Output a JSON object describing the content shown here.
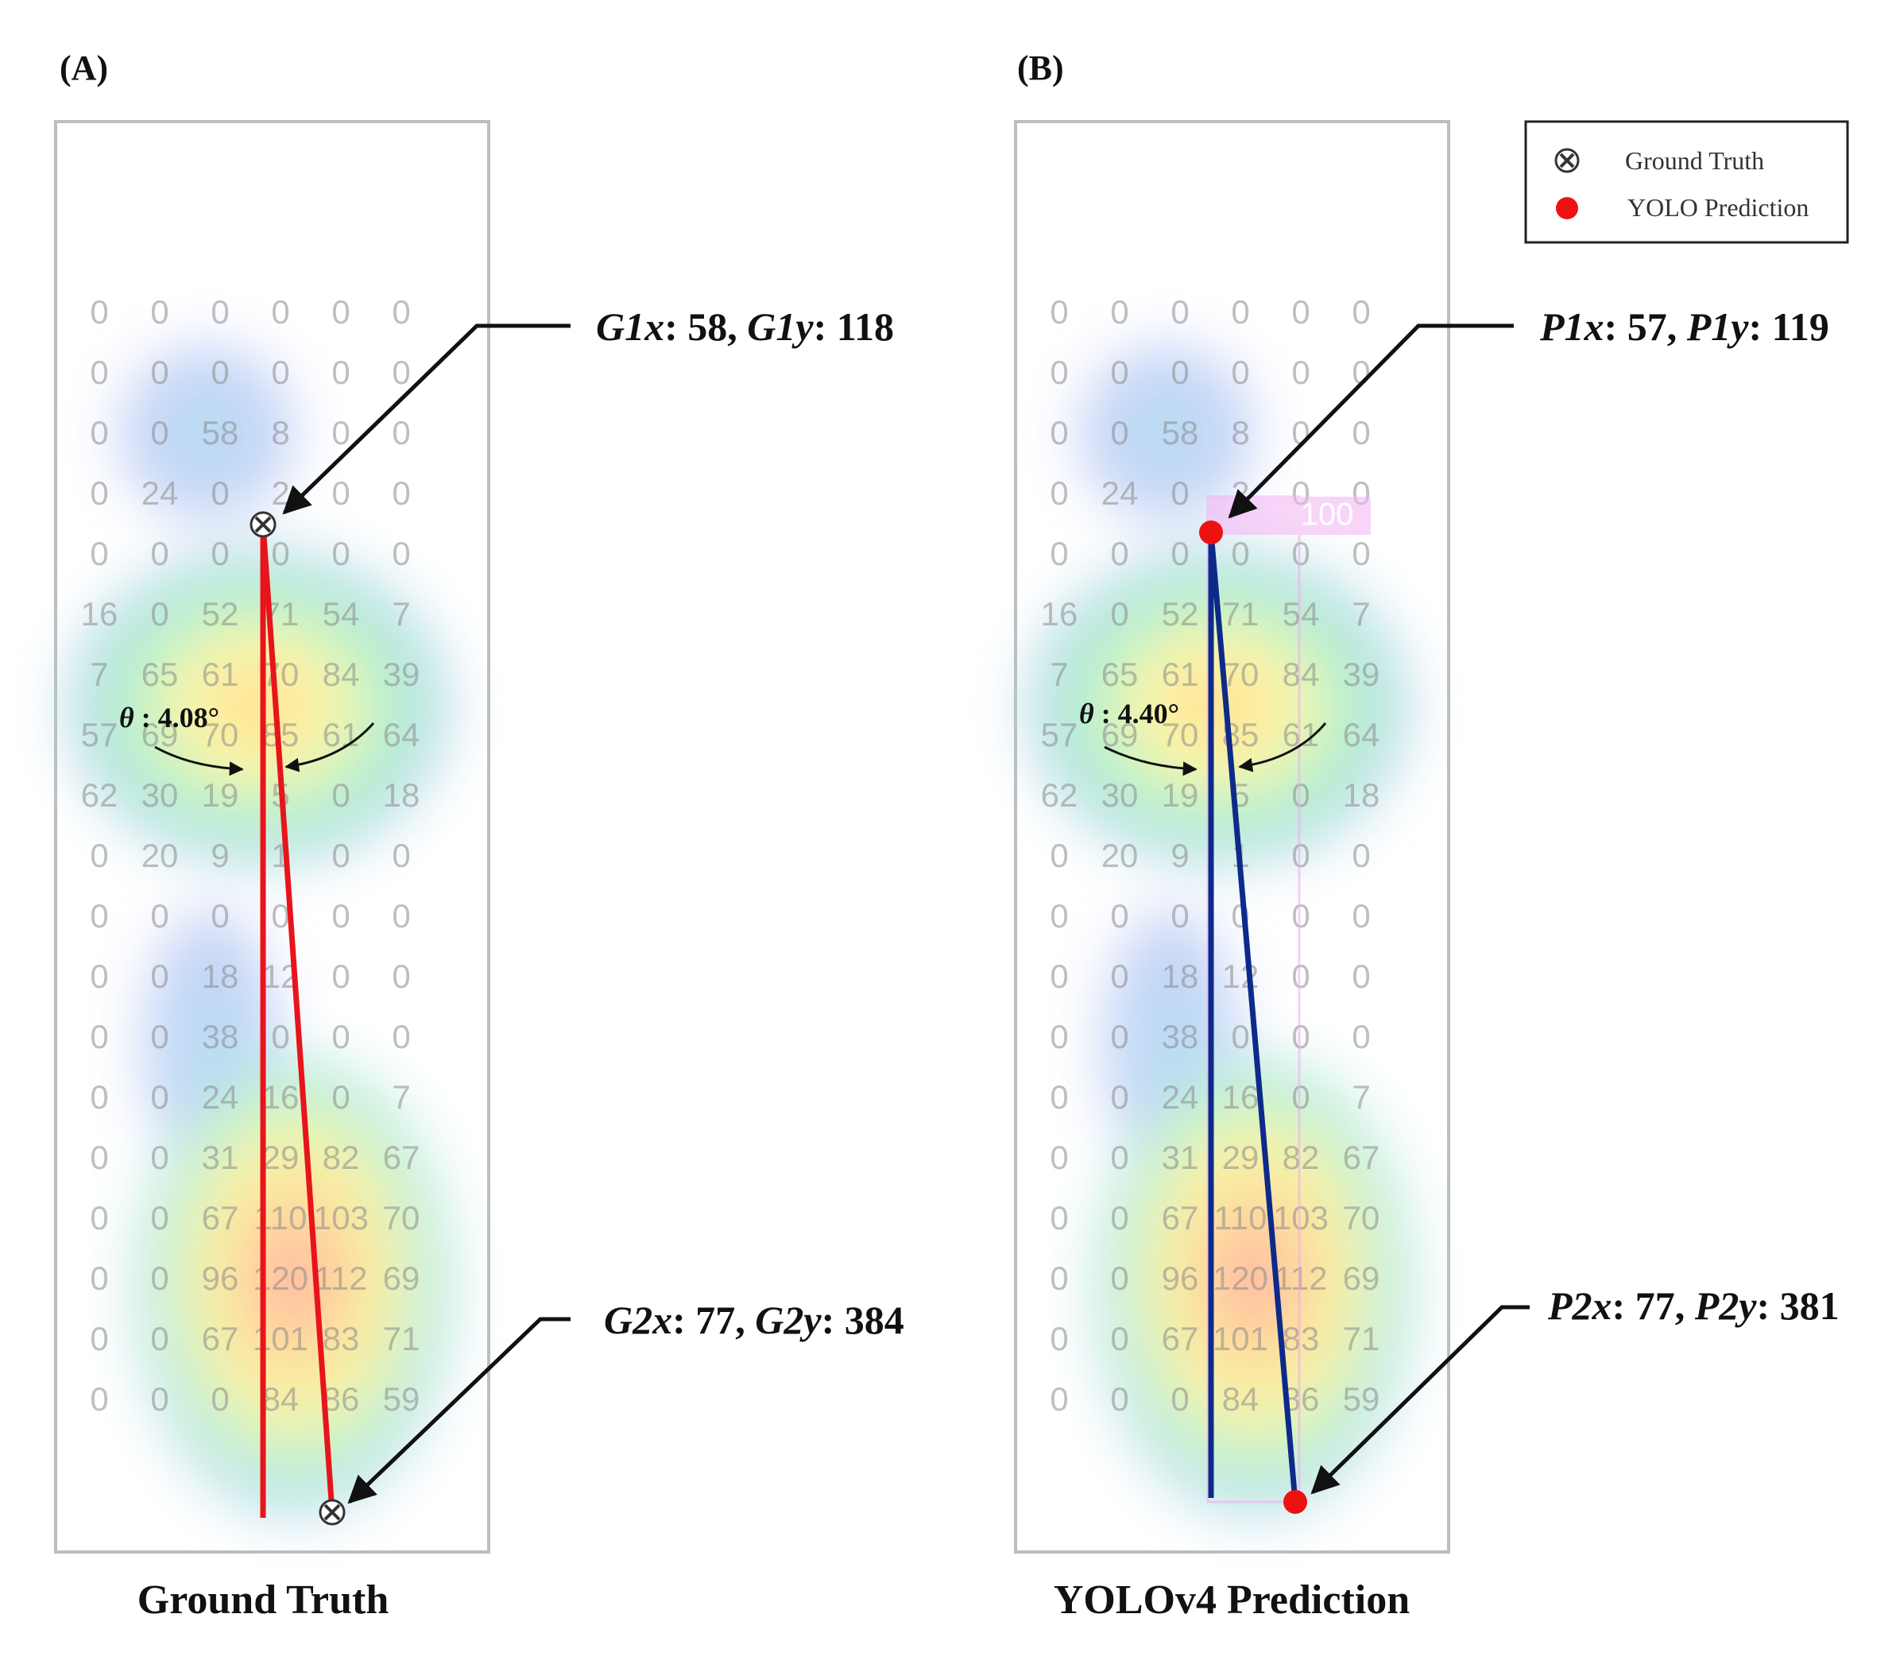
{
  "panels": [
    {
      "tag": "(A)",
      "caption": "Ground Truth",
      "angle": {
        "symbol": "θ",
        "value": " : 4.08°"
      },
      "top_point": {
        "label_x": "G1x",
        "value_x": "58",
        "label_y": "G1y",
        "value_y": "118"
      },
      "bottom_point": {
        "label_x": "G2x",
        "value_x": "77",
        "label_y": "G2y",
        "value_y": "384"
      },
      "marker": "x-mark-icon",
      "line_color": "#e8141b"
    },
    {
      "tag": "(B)",
      "caption": "YOLOv4 Prediction",
      "angle": {
        "symbol": "θ",
        "value": " : 4.40°"
      },
      "top_point": {
        "label_x": "P1x",
        "value_x": "57",
        "label_y": "P1y",
        "value_y": "119"
      },
      "bottom_point": {
        "label_x": "P2x",
        "value_x": "77",
        "label_y": "P2y",
        "value_y": "381"
      },
      "marker": "red-dot-icon",
      "line_color": "#0d2a8a",
      "box_label": "100"
    }
  ],
  "legend": {
    "items": [
      {
        "icon": "x-mark-icon",
        "label": "Ground Truth"
      },
      {
        "icon": "red-dot-icon",
        "label": "YOLO Prediction"
      }
    ]
  },
  "pressure_grid": [
    [
      "0",
      "0",
      "0",
      "0",
      "0",
      "0"
    ],
    [
      "0",
      "0",
      "0",
      "0",
      "0",
      "0"
    ],
    [
      "0",
      "0",
      "58",
      "8",
      "0",
      "0"
    ],
    [
      "0",
      "24",
      "0",
      "2",
      "0",
      "0"
    ],
    [
      "0",
      "0",
      "0",
      "0",
      "0",
      "0"
    ],
    [
      "16",
      "0",
      "52",
      "71",
      "54",
      "7"
    ],
    [
      "7",
      "65",
      "61",
      "70",
      "84",
      "39"
    ],
    [
      "57",
      "69",
      "70",
      "85",
      "61",
      "64"
    ],
    [
      "62",
      "30",
      "19",
      "5",
      "0",
      "18"
    ],
    [
      "0",
      "20",
      "9",
      "1",
      "0",
      "0"
    ],
    [
      "0",
      "0",
      "0",
      "0",
      "0",
      "0"
    ],
    [
      "0",
      "0",
      "18",
      "12",
      "0",
      "0"
    ],
    [
      "0",
      "0",
      "38",
      "0",
      "0",
      "0"
    ],
    [
      "0",
      "0",
      "24",
      "16",
      "0",
      "7"
    ],
    [
      "0",
      "0",
      "31",
      "29",
      "82",
      "67"
    ],
    [
      "0",
      "0",
      "67",
      "110",
      "103",
      "70"
    ],
    [
      "0",
      "0",
      "96",
      "120",
      "112",
      "69"
    ],
    [
      "0",
      "0",
      "67",
      "101",
      "83",
      "71"
    ],
    [
      "0",
      "0",
      "0",
      "84",
      "86",
      "59"
    ]
  ]
}
